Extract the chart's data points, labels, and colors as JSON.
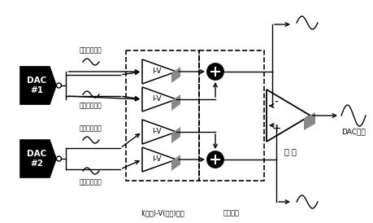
{
  "bg_color": "#ffffff",
  "line_color": "#000000",
  "dac_fill": "#000000",
  "dac_text_color": "#ffffff",
  "gray_fill": "#888888",
  "fig_width": 4.6,
  "fig_height": 2.74,
  "dpi": 100,
  "label_iv": "I-V",
  "label_dac1": "DAC\n#1",
  "label_dac2": "DAC\n#2",
  "label_gensou": "減 算",
  "label_dac_out": "DAC出力",
  "label_iv_convert": "I(電流)-V(電圧)変換",
  "label_voltage_add": "電圧加算",
  "label_pos1": "（正相出力）",
  "label_neg1": "（逆相出力）",
  "label_pos2": "（正相出力）",
  "label_neg2": "（逆相出力）"
}
